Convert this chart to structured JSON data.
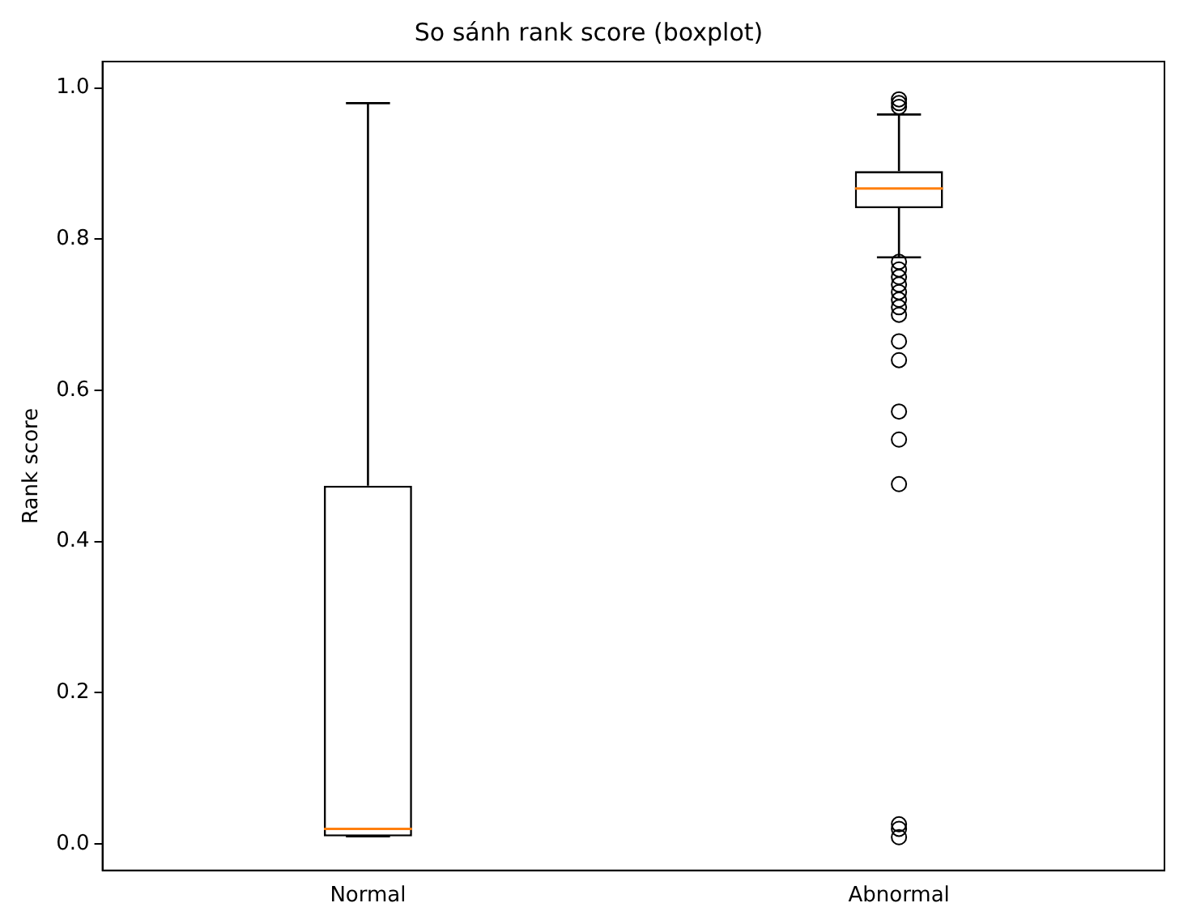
{
  "chart_data": {
    "type": "box",
    "title": "So sánh rank score (boxplot)",
    "ylabel": "Rank score",
    "categories": [
      "Normal",
      "Abnormal"
    ],
    "ylim": [
      -0.035,
      1.035
    ],
    "yticks": [
      {
        "value": 0,
        "label": "0.0"
      },
      {
        "value": 0.2,
        "label": "0.2"
      },
      {
        "value": 0.4,
        "label": "0.4"
      },
      {
        "value": 0.6,
        "label": "0.6"
      },
      {
        "value": 0.8,
        "label": "0.8"
      },
      {
        "value": 1,
        "label": "1.0"
      }
    ],
    "grid": false,
    "legend": false,
    "marker": "circle",
    "series": [
      {
        "color": "#000000",
        "boxes": [
          {
            "low": 0.01,
            "q1": 0.01,
            "median": 0.02,
            "q3": 0.474,
            "high": 0.98
          },
          {
            "low": 0.776,
            "q1": 0.841,
            "median": 0.867,
            "q3": 0.89,
            "high": 0.965,
            "outliers": [
              0.975,
              0.98,
              0.985,
              0.77,
              0.76,
              0.75,
              0.74,
              0.73,
              0.72,
              0.71,
              0.7,
              0.665,
              0.64,
              0.572,
              0.535,
              0.476,
              0.026,
              0.02,
              0.009
            ]
          }
        ]
      }
    ]
  }
}
